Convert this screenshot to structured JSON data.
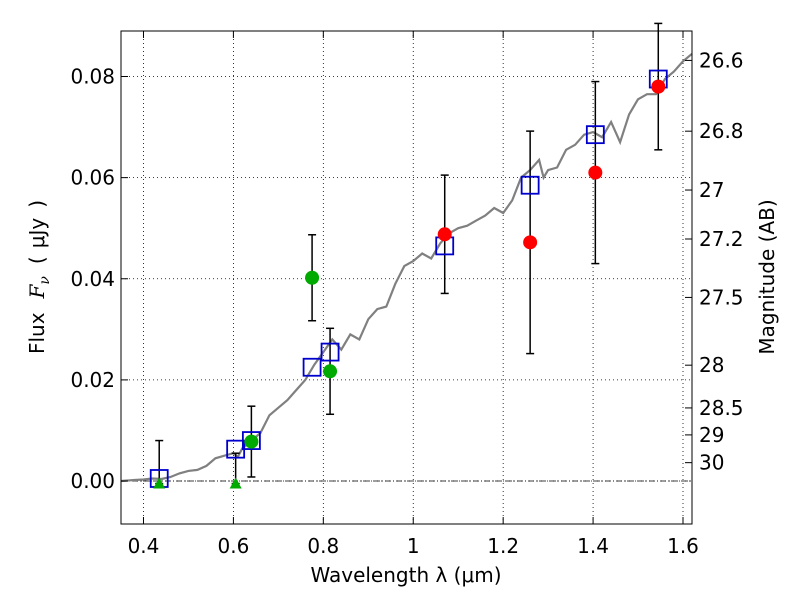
{
  "chart_data": {
    "type": "scatter",
    "xlabel": "Wavelength  λ (μm)",
    "ylabel_parts": [
      "Flux",
      "F",
      "ν",
      "(",
      "μJy",
      ")"
    ],
    "ylabel_right": "Magnitude (AB)",
    "xlim": [
      0.35,
      1.62
    ],
    "ylim": [
      -0.0085,
      0.089
    ],
    "grid": "dotted",
    "x_ticks": [
      {
        "value": 0.4,
        "label": "0.4"
      },
      {
        "value": 0.6,
        "label": "0.6"
      },
      {
        "value": 0.8,
        "label": "0.8"
      },
      {
        "value": 1.0,
        "label": "1"
      },
      {
        "value": 1.2,
        "label": "1.2"
      },
      {
        "value": 1.4,
        "label": "1.4"
      },
      {
        "value": 1.6,
        "label": "1.6"
      }
    ],
    "y_ticks": [
      {
        "value": 0.0,
        "label": "0.00"
      },
      {
        "value": 0.02,
        "label": "0.02"
      },
      {
        "value": 0.04,
        "label": "0.04"
      },
      {
        "value": 0.06,
        "label": "0.06"
      },
      {
        "value": 0.08,
        "label": "0.08"
      }
    ],
    "mag_ticks": [
      {
        "mag": 26.6,
        "label": "26.6"
      },
      {
        "mag": 26.8,
        "label": "26.8"
      },
      {
        "mag": 27.0,
        "label": "27"
      },
      {
        "mag": 27.2,
        "label": "27.2"
      },
      {
        "mag": 27.5,
        "label": "27.5"
      },
      {
        "mag": 28.0,
        "label": "28"
      },
      {
        "mag": 28.5,
        "label": "28.5"
      },
      {
        "mag": 29.0,
        "label": "29"
      },
      {
        "mag": 30.0,
        "label": "30"
      }
    ],
    "model_sed": {
      "color": "#808080",
      "points": [
        [
          0.35,
          0.0
        ],
        [
          0.38,
          0.0002
        ],
        [
          0.4,
          0.0003
        ],
        [
          0.42,
          0.0005
        ],
        [
          0.44,
          0.0004
        ],
        [
          0.46,
          0.0008
        ],
        [
          0.48,
          0.0015
        ],
        [
          0.5,
          0.002
        ],
        [
          0.52,
          0.0022
        ],
        [
          0.54,
          0.003
        ],
        [
          0.56,
          0.0045
        ],
        [
          0.58,
          0.005
        ],
        [
          0.6,
          0.0055
        ],
        [
          0.61,
          0.0048
        ],
        [
          0.62,
          0.0065
        ],
        [
          0.64,
          0.008
        ],
        [
          0.66,
          0.0095
        ],
        [
          0.68,
          0.013
        ],
        [
          0.7,
          0.0145
        ],
        [
          0.72,
          0.016
        ],
        [
          0.74,
          0.018
        ],
        [
          0.76,
          0.02
        ],
        [
          0.78,
          0.023
        ],
        [
          0.8,
          0.0255
        ],
        [
          0.82,
          0.028
        ],
        [
          0.84,
          0.026
        ],
        [
          0.86,
          0.029
        ],
        [
          0.88,
          0.028
        ],
        [
          0.9,
          0.032
        ],
        [
          0.92,
          0.034
        ],
        [
          0.94,
          0.0345
        ],
        [
          0.96,
          0.039
        ],
        [
          0.98,
          0.0425
        ],
        [
          1.0,
          0.0435
        ],
        [
          1.02,
          0.045
        ],
        [
          1.04,
          0.044
        ],
        [
          1.06,
          0.047
        ],
        [
          1.08,
          0.049
        ],
        [
          1.1,
          0.05
        ],
        [
          1.12,
          0.0505
        ],
        [
          1.14,
          0.0515
        ],
        [
          1.16,
          0.0525
        ],
        [
          1.18,
          0.054
        ],
        [
          1.2,
          0.053
        ],
        [
          1.22,
          0.0555
        ],
        [
          1.24,
          0.06
        ],
        [
          1.26,
          0.0615
        ],
        [
          1.28,
          0.0635
        ],
        [
          1.29,
          0.06
        ],
        [
          1.3,
          0.0615
        ],
        [
          1.32,
          0.062
        ],
        [
          1.34,
          0.0655
        ],
        [
          1.36,
          0.0665
        ],
        [
          1.38,
          0.0685
        ],
        [
          1.4,
          0.069
        ],
        [
          1.42,
          0.068
        ],
        [
          1.44,
          0.071
        ],
        [
          1.46,
          0.067
        ],
        [
          1.48,
          0.0725
        ],
        [
          1.5,
          0.0755
        ],
        [
          1.52,
          0.0765
        ],
        [
          1.54,
          0.0765
        ],
        [
          1.56,
          0.0795
        ],
        [
          1.58,
          0.081
        ],
        [
          1.6,
          0.083
        ],
        [
          1.62,
          0.0845
        ]
      ]
    },
    "model_photometry": {
      "color": "#0000cc",
      "marker": "open-square",
      "points": [
        [
          0.435,
          0.0005
        ],
        [
          0.605,
          0.0063
        ],
        [
          0.64,
          0.008
        ],
        [
          0.775,
          0.0225
        ],
        [
          0.815,
          0.0255
        ],
        [
          1.07,
          0.0465
        ],
        [
          1.26,
          0.0585
        ],
        [
          1.405,
          0.0685
        ],
        [
          1.545,
          0.0795
        ]
      ]
    },
    "detections_green": {
      "color": "#00aa00",
      "points": [
        {
          "x": 0.64,
          "y": 0.0078,
          "err": 0.007
        },
        {
          "x": 0.775,
          "y": 0.0402,
          "err": 0.0085
        },
        {
          "x": 0.815,
          "y": 0.0217,
          "err": 0.0085
        }
      ]
    },
    "upper_limits_green": {
      "color": "#00aa00",
      "marker": "triangle",
      "points": [
        {
          "x": 0.435,
          "y": -0.0005,
          "err_up": 0.0085
        },
        {
          "x": 0.605,
          "y": -0.0005,
          "err_up": 0.006
        }
      ]
    },
    "detections_red": {
      "color": "#ff0000",
      "points": [
        {
          "x": 1.07,
          "y": 0.0488,
          "err": 0.0117
        },
        {
          "x": 1.26,
          "y": 0.0472,
          "err": 0.022
        },
        {
          "x": 1.405,
          "y": 0.061,
          "err": 0.018
        },
        {
          "x": 1.545,
          "y": 0.078,
          "err": 0.0125
        }
      ]
    },
    "zero_line": {
      "y": 0.0,
      "style": "dash-dot"
    }
  }
}
